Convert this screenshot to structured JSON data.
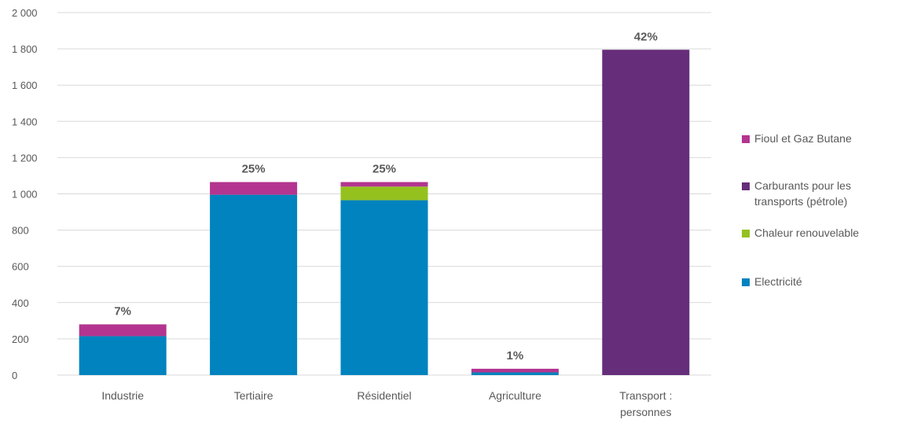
{
  "chart_data": {
    "type": "bar",
    "stacked": true,
    "categories": [
      [
        "Industrie"
      ],
      [
        "Tertiaire"
      ],
      [
        "Résidentiel"
      ],
      [
        "Agriculture"
      ],
      [
        "Transport :",
        "personnes"
      ]
    ],
    "series": [
      {
        "name": "Electricité",
        "color": "#0083be",
        "values": [
          215,
          995,
          965,
          15,
          0
        ]
      },
      {
        "name": "Chaleur renouvelable",
        "color": "#95c11f",
        "values": [
          0,
          0,
          75,
          0,
          0
        ]
      },
      {
        "name": "Carburants pour les transports (pétrole)",
        "color": "#662d7a",
        "values": [
          0,
          0,
          0,
          0,
          1795
        ]
      },
      {
        "name": "Fioul et Gaz Butane",
        "color": "#b3358f",
        "values": [
          65,
          70,
          25,
          20,
          0
        ]
      }
    ],
    "data_labels": [
      "7%",
      "25%",
      "25%",
      "1%",
      "42%"
    ],
    "ylim": [
      0,
      2000
    ],
    "yticks": [
      0,
      200,
      400,
      600,
      800,
      1000,
      1200,
      1400,
      1600,
      1800,
      2000
    ],
    "ytick_labels": [
      "0",
      "200",
      "400",
      "600",
      "800",
      "1 000",
      "1 200",
      "1 400",
      "1 600",
      "1 800",
      "2 000"
    ],
    "grid": true,
    "legend_position": "right",
    "legend": [
      {
        "lines": [
          "Fioul et Gaz Butane"
        ],
        "color": "#b3358f"
      },
      {
        "lines": [
          "Carburants pour les",
          "transports (pétrole)"
        ],
        "color": "#662d7a"
      },
      {
        "lines": [
          "Chaleur renouvelable"
        ],
        "color": "#95c11f"
      },
      {
        "lines": [
          "Electricité"
        ],
        "color": "#0083be"
      }
    ]
  }
}
